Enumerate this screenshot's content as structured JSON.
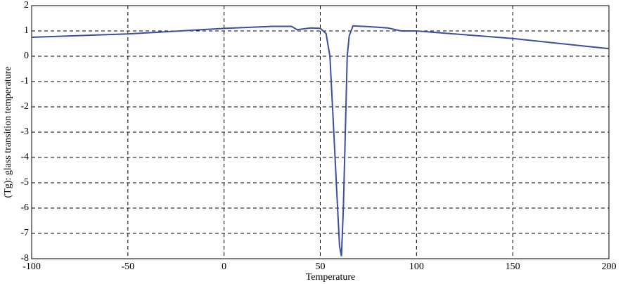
{
  "chart_data": {
    "type": "line",
    "x_label": "Temperature",
    "y_label": "(Tg): glass transition temperature",
    "x": [
      -100,
      -50,
      0,
      25,
      35,
      38,
      45,
      50,
      53,
      55,
      57,
      59,
      60,
      61,
      62,
      63,
      64,
      65,
      67,
      75,
      85,
      92,
      100,
      150,
      200
    ],
    "values": [
      0.75,
      0.88,
      1.1,
      1.18,
      1.18,
      1.05,
      1.12,
      1.1,
      0.9,
      0,
      -3,
      -6,
      -7.5,
      -7.9,
      -6,
      -3,
      0,
      0.8,
      1.2,
      1.17,
      1.12,
      1.0,
      1.0,
      0.7,
      0.3
    ],
    "color": "#3a4fa0",
    "xlim": [
      -100,
      200
    ],
    "xticks": [
      -100,
      -50,
      0,
      50,
      100,
      150,
      200
    ],
    "ylim": [
      -8,
      2
    ],
    "yticks": [
      -8,
      -7,
      -6,
      -5,
      -4,
      -3,
      -2,
      -1,
      0,
      1,
      2
    ],
    "grid": true
  }
}
